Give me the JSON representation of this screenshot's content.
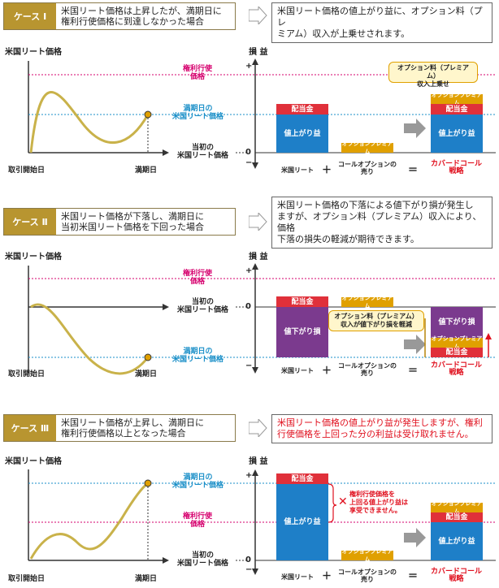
{
  "cases": [
    {
      "badge": "ケース Ⅰ",
      "desc": "米国リート価格は上昇したが、満期日に\n権利行使価格に到達しなかった場合",
      "result": "米国リート価格の値上がり益に、オプション料（プレ\nミアム）収入が上乗せされます。",
      "chart_title": "米国リート価格",
      "pl_label": "損 益",
      "strike": "権利行使\n価格",
      "maturity_price": "満期日の\n米国リート価格",
      "initial_price": "当初の\n米国リート価格",
      "start": "取引開始日",
      "end": "満期日",
      "plus_sym": "+",
      "minus_sym": "−",
      "zero": "0",
      "bar_gain": "値上がり益",
      "bar_div": "配当金",
      "bar_premium": "オプションプレミアム",
      "callout": "オプション料（プレミアム）\n収入上乗せ",
      "cap_reit": "米国リート",
      "cap_call": "コールオプションの\n売り",
      "cap_strategy": "カバードコール\n戦略",
      "plus_op": "＋",
      "eq_op": "＝"
    },
    {
      "badge": "ケース Ⅱ",
      "desc": "米国リート価格が下落し、満期日に\n当初米国リート価格を下回った場合",
      "result": "米国リート価格の下落による値下がり損が発生し\nますが、オプション料（プレミアム）収入により、価格\n下落の損失の軽減が期待できます。",
      "chart_title": "米国リート価格",
      "pl_label": "損 益",
      "strike": "権利行使\n価格",
      "initial_price": "当初の\n米国リート価格",
      "maturity_price": "満期日の\n米国リート価格",
      "start": "取引開始日",
      "end": "満期日",
      "plus_sym": "+",
      "minus_sym": "−",
      "zero": "0",
      "bar_loss": "値下がり損",
      "bar_div": "配当金",
      "bar_premium": "オプションプレミアム",
      "callout": "オプション料（プレミアム）\n収入が値下がり損を軽減",
      "cap_reit": "米国リート",
      "cap_call": "コールオプションの\n売り",
      "cap_strategy": "カバードコール\n戦略",
      "plus_op": "＋",
      "eq_op": "＝"
    },
    {
      "badge": "ケース Ⅲ",
      "desc": "米国リート価格が上昇し、満期日に\n権利行使価格以上となった場合",
      "result": "米国リート価格の値上がり益が発生しますが、権利\n行使価格を上回った分の利益は受け取れません。",
      "chart_title": "米国リート価格",
      "pl_label": "損 益",
      "maturity_price": "満期日の\n米国リート価格",
      "strike": "権利行使\n価格",
      "initial_price": "当初の\n米国リート価格",
      "start": "取引開始日",
      "end": "満期日",
      "plus_sym": "+",
      "minus_sym": "−",
      "zero": "0",
      "bar_gain": "値上がり益",
      "bar_div": "配当金",
      "bar_premium": "オプションプレミアム",
      "callout": "権利行使価格を\n上回る値上がり益は\n享受できません。",
      "cross": "✕",
      "cap_reit": "米国リート",
      "cap_call": "コールオプションの\n売り",
      "cap_strategy": "カバードコール\n戦略",
      "plus_op": "＋",
      "eq_op": "＝"
    }
  ],
  "colors": {
    "gold": "#b89530",
    "strike_line": "#d6006e",
    "maturity_line": "#1a8fc8",
    "gain_bar": "#1e7fc8",
    "loss_bar": "#7b3a8e",
    "dividend_bar": "#e0303a",
    "premium_bar": "#e0a000",
    "curve": "#c9b24a",
    "arrow_gray": "#999999",
    "emphasis_red": "#e0101e"
  },
  "icons": [
    "chevron-right-icon",
    "gray-arrow-icon",
    "cross-icon"
  ]
}
